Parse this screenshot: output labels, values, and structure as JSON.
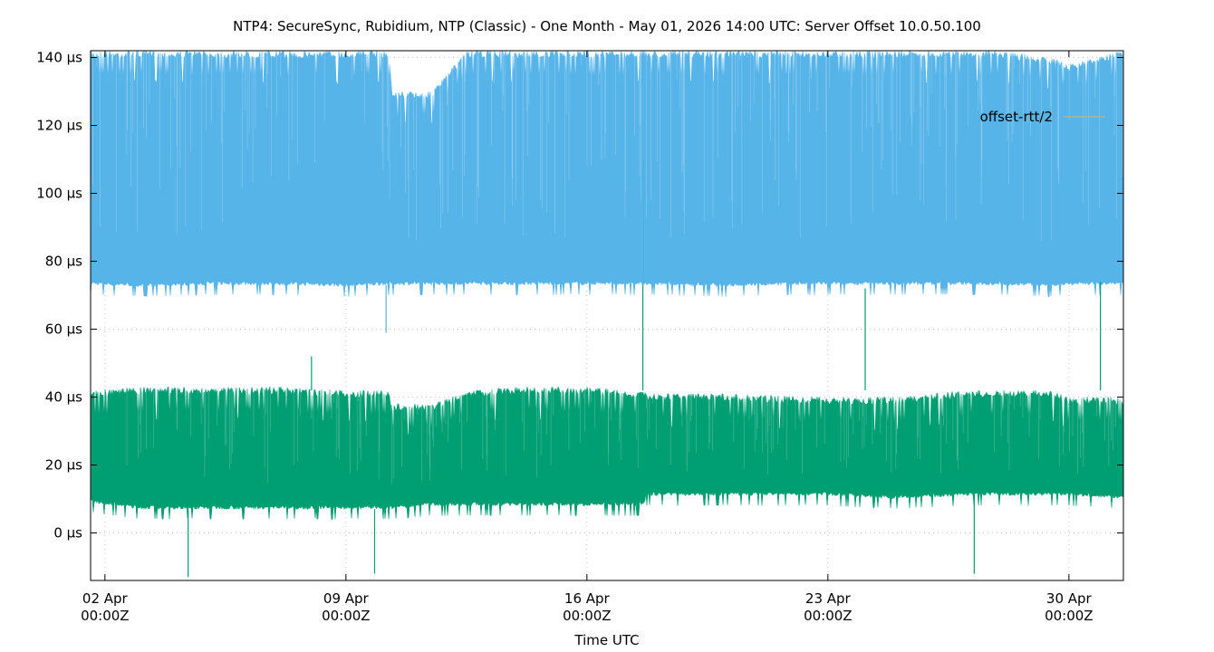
{
  "chart_data": {
    "type": "area",
    "title": "NTP4: SecureSync, Rubidium, NTP (Classic) - One Month - May 01, 2026 14:00 UTC: Server Offset 10.0.50.100",
    "xlabel": "Time UTC",
    "ylabel": "",
    "ylim": [
      -14,
      142
    ],
    "xlim": [
      "2026-04-01T14:00Z",
      "2026-05-01T14:00Z"
    ],
    "grid": true,
    "legend_position": "top-right",
    "y_ticks": [
      {
        "value": 0,
        "label": "0 µs"
      },
      {
        "value": 20,
        "label": "20 µs"
      },
      {
        "value": 40,
        "label": "40 µs"
      },
      {
        "value": 60,
        "label": "60 µs"
      },
      {
        "value": 80,
        "label": "80 µs"
      },
      {
        "value": 100,
        "label": "100 µs"
      },
      {
        "value": 120,
        "label": "120 µs"
      },
      {
        "value": 140,
        "label": "140 µs"
      }
    ],
    "x_ticks": [
      {
        "value": "2026-04-02T00:00Z",
        "line1": "02 Apr",
        "line2": "00:00Z"
      },
      {
        "value": "2026-04-09T00:00Z",
        "line1": "09 Apr",
        "line2": "00:00Z"
      },
      {
        "value": "2026-04-16T00:00Z",
        "line1": "16 Apr",
        "line2": "00:00Z"
      },
      {
        "value": "2026-04-23T00:00Z",
        "line1": "23 Apr",
        "line2": "00:00Z"
      },
      {
        "value": "2026-04-30T00:00Z",
        "line1": "30 Apr",
        "line2": "00:00Z"
      }
    ],
    "series": [
      {
        "name": "",
        "color": "#56b4e9",
        "style": "band",
        "x": [
          "2026-04-01T14:00Z",
          "2026-04-03T00:00Z",
          "2026-04-05T00:00Z",
          "2026-04-07T00:00Z",
          "2026-04-09T00:00Z",
          "2026-04-10T06:00Z",
          "2026-04-10T08:00Z",
          "2026-04-11T12:00Z",
          "2026-04-12T12:00Z",
          "2026-04-14T00:00Z",
          "2026-04-16T00:00Z",
          "2026-04-17T00:00Z",
          "2026-04-18T00:00Z",
          "2026-04-20T00:00Z",
          "2026-04-22T00:00Z",
          "2026-04-24T00:00Z",
          "2026-04-26T00:00Z",
          "2026-04-28T00:00Z",
          "2026-04-29T12:00Z",
          "2026-04-30T00:00Z",
          "2026-05-01T14:00Z"
        ],
        "low": [
          73,
          72.5,
          73,
          73,
          72.5,
          73,
          73,
          73,
          73,
          73,
          73,
          73,
          73,
          72.5,
          73,
          73,
          73,
          73,
          72.5,
          73,
          73
        ],
        "high": [
          142,
          142,
          142,
          142,
          142,
          142,
          130,
          130,
          142,
          142,
          142,
          142,
          142,
          142,
          142,
          142,
          142,
          142,
          140,
          138,
          142
        ]
      },
      {
        "name": "",
        "color": "#009e73",
        "style": "band",
        "x": [
          "2026-04-01T14:00Z",
          "2026-04-03T00:00Z",
          "2026-04-05T00:00Z",
          "2026-04-07T00:00Z",
          "2026-04-09T00:00Z",
          "2026-04-10T06:00Z",
          "2026-04-10T08:00Z",
          "2026-04-11T12:00Z",
          "2026-04-12T12:00Z",
          "2026-04-14T00:00Z",
          "2026-04-16T00:00Z",
          "2026-04-17T00:00Z",
          "2026-04-17T16:00Z",
          "2026-04-17T17:00Z",
          "2026-04-20T00:00Z",
          "2026-04-23T00:00Z",
          "2026-04-25T00:00Z",
          "2026-04-27T00:00Z",
          "2026-04-29T12:00Z",
          "2026-04-30T00:00Z",
          "2026-05-01T14:00Z"
        ],
        "low": [
          9,
          7,
          7,
          7,
          7,
          7,
          7,
          8,
          8,
          8,
          8,
          8,
          8,
          11,
          11,
          11,
          10,
          11,
          11,
          11,
          10
        ],
        "high": [
          42,
          43,
          43,
          43,
          42,
          42,
          38,
          38,
          42,
          43,
          43,
          42,
          42,
          41,
          41,
          40,
          40,
          42,
          42,
          40,
          40
        ]
      },
      {
        "name": "offset-rtt/2",
        "color": "#c0b27a",
        "style": "line",
        "x": [],
        "values": []
      }
    ],
    "annotations": [
      {
        "series": 1,
        "x": "2026-04-09T20:00Z",
        "y_from": 7,
        "y_to": -12
      },
      {
        "series": 1,
        "x": "2026-04-08T00:00Z",
        "y_from": 42,
        "y_to": 52
      },
      {
        "series": 1,
        "x": "2026-04-17T15:00Z",
        "y_from": 42,
        "y_to": 110
      },
      {
        "series": 1,
        "x": "2026-04-24T02:00Z",
        "y_from": 42,
        "y_to": 72
      },
      {
        "series": 1,
        "x": "2026-04-27T06:00Z",
        "y_from": 11,
        "y_to": -12
      },
      {
        "series": 1,
        "x": "2026-04-30T22:00Z",
        "y_from": 42,
        "y_to": 74
      },
      {
        "series": 1,
        "x": "2026-04-04T10:00Z",
        "y_from": 7,
        "y_to": -13
      },
      {
        "series": 0,
        "x": "2026-04-10T04:00Z",
        "y_from": 73,
        "y_to": 59
      },
      {
        "series": 0,
        "x": "2026-04-17T15:00Z",
        "y_from": 73,
        "y_to": 112
      },
      {
        "series": 0,
        "x": "2026-04-27T16:00Z",
        "y_from": 73,
        "y_to": 110
      }
    ]
  }
}
